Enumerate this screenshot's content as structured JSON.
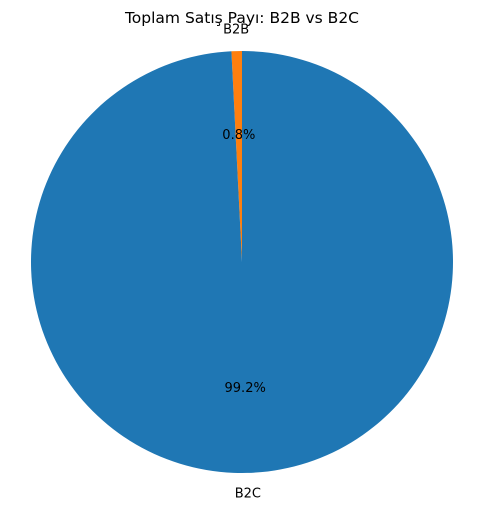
{
  "chart_data": {
    "type": "pie",
    "title": "Toplam Satış Payı: B2B vs B2C",
    "slices": [
      {
        "label": "B2B",
        "value": 0.8,
        "pct_label": "0.8%",
        "color": "#ff7f0e"
      },
      {
        "label": "B2C",
        "value": 99.2,
        "pct_label": "99.2%",
        "color": "#1f77b4"
      }
    ],
    "start_angle_deg": 90,
    "direction": "counterclockwise",
    "legend": "none"
  }
}
